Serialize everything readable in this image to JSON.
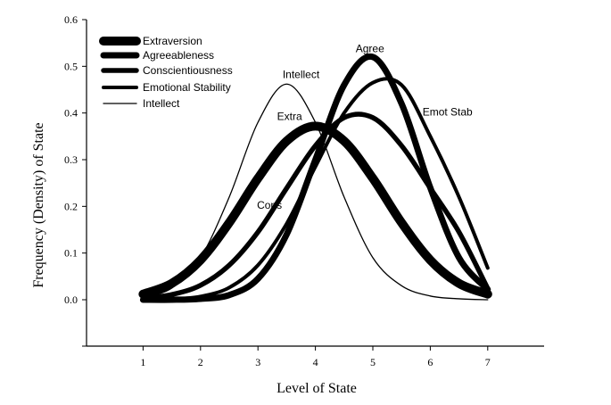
{
  "chart_data": {
    "type": "line",
    "title": "",
    "xlabel": "Level of State",
    "ylabel": "Frequency (Density) of State",
    "xlim": [
      0,
      8
    ],
    "ylim": [
      -0.1,
      0.6
    ],
    "x_ticks": [
      1,
      2,
      3,
      4,
      5,
      6,
      7
    ],
    "y_ticks": [
      0.0,
      0.1,
      0.2,
      0.3,
      0.4,
      0.5,
      0.6
    ],
    "y_tick_labels": [
      "0.0",
      "0.1",
      "0.2",
      "0.3",
      "0.4",
      "0.5",
      "0.6"
    ],
    "grid": false,
    "legend_position": "top-left",
    "x": [
      1,
      1.5,
      2,
      2.5,
      3,
      3.5,
      4,
      4.5,
      5,
      5.5,
      6,
      6.5,
      7
    ],
    "series": [
      {
        "name": "Extraversion",
        "weight": "heaviest",
        "values": [
          0.012,
          0.035,
          0.085,
          0.165,
          0.26,
          0.34,
          0.372,
          0.34,
          0.26,
          0.165,
          0.085,
          0.035,
          0.012
        ]
      },
      {
        "name": "Agreeableness",
        "weight": "heavy",
        "values": [
          0.0,
          0.0,
          0.002,
          0.01,
          0.045,
          0.14,
          0.3,
          0.46,
          0.52,
          0.42,
          0.24,
          0.09,
          0.022
        ]
      },
      {
        "name": "Conscientiousness",
        "weight": "medium-heavy",
        "values": [
          0.003,
          0.011,
          0.031,
          0.074,
          0.145,
          0.239,
          0.33,
          0.39,
          0.39,
          0.33,
          0.239,
          0.145,
          0.024
        ]
      },
      {
        "name": "Emotional Stability",
        "weight": "medium",
        "values": [
          0.0,
          0.001,
          0.007,
          0.026,
          0.074,
          0.163,
          0.285,
          0.4,
          0.465,
          0.46,
          0.35,
          0.22,
          0.068
        ]
      },
      {
        "name": "Intellect",
        "weight": "thin",
        "values": [
          0.005,
          0.025,
          0.09,
          0.22,
          0.38,
          0.462,
          0.38,
          0.22,
          0.09,
          0.03,
          0.008,
          0.002,
          0.0
        ]
      }
    ],
    "annotations": [
      {
        "text": "Intellect",
        "x": 3.75,
        "y": 0.475
      },
      {
        "text": "Agree",
        "x": 4.95,
        "y": 0.53
      },
      {
        "text": "Extra",
        "x": 3.55,
        "y": 0.385
      },
      {
        "text": "Emot Stab",
        "x": 6.3,
        "y": 0.395
      },
      {
        "text": "Cons",
        "x": 3.2,
        "y": 0.195
      }
    ]
  }
}
